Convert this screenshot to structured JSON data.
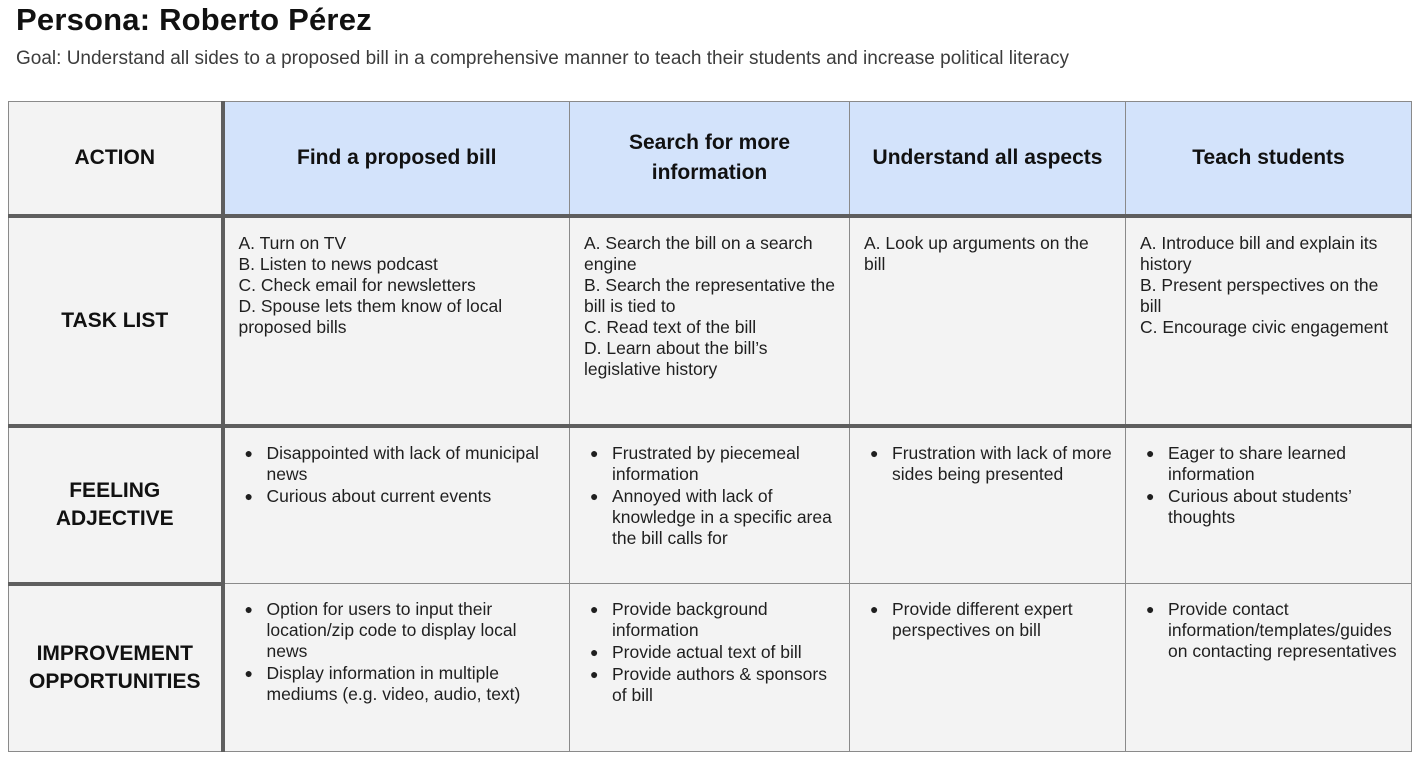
{
  "header": {
    "title": "Persona: Roberto Pérez",
    "goal": "Goal: Understand all sides to a proposed bill in a comprehensive manner to teach their students and increase political literacy"
  },
  "rows": {
    "action": "ACTION",
    "task_list": "TASK LIST",
    "feeling_line1": "FEELING",
    "feeling_line2": "ADJECTIVE",
    "improvement_line1": "IMPROVEMENT",
    "improvement_line2": "OPPORTUNITIES"
  },
  "stages": [
    {
      "title": "Find a proposed bill",
      "tasks": [
        "A. Turn on TV",
        "B. Listen to news podcast",
        "C. Check email for newsletters",
        "D. Spouse lets them know of local proposed bills"
      ],
      "feelings": [
        "Disappointed with lack of municipal news",
        "Curious about current events"
      ],
      "improvements": [
        "Option for users to input their location/zip code to display local news",
        "Display information in multiple mediums (e.g. video, audio, text)"
      ]
    },
    {
      "title": "Search for more information",
      "tasks": [
        "A. Search the bill on a search engine",
        "B. Search the representative the bill is tied to",
        "C. Read text of the bill",
        "D. Learn about the bill’s legislative history"
      ],
      "feelings": [
        "Frustrated by piecemeal information",
        "Annoyed with lack of knowledge in a specific area the bill calls for"
      ],
      "improvements": [
        "Provide background information",
        "Provide actual text of bill",
        "Provide authors & sponsors of bill"
      ]
    },
    {
      "title": "Understand all aspects",
      "tasks": [
        "A. Look up arguments on the bill"
      ],
      "feelings": [
        "Frustration with lack of more sides being presented"
      ],
      "improvements": [
        "Provide different expert perspectives on bill"
      ]
    },
    {
      "title": "Teach students",
      "tasks": [
        "A. Introduce bill and explain its history",
        "B. Present perspectives on the bill",
        "C. Encourage civic engagement"
      ],
      "feelings": [
        "Eager to share learned information",
        "Curious about students’ thoughts"
      ],
      "improvements": [
        "Provide contact information/templates/guides on contacting representatives"
      ]
    }
  ],
  "bullet_glyph": "●"
}
